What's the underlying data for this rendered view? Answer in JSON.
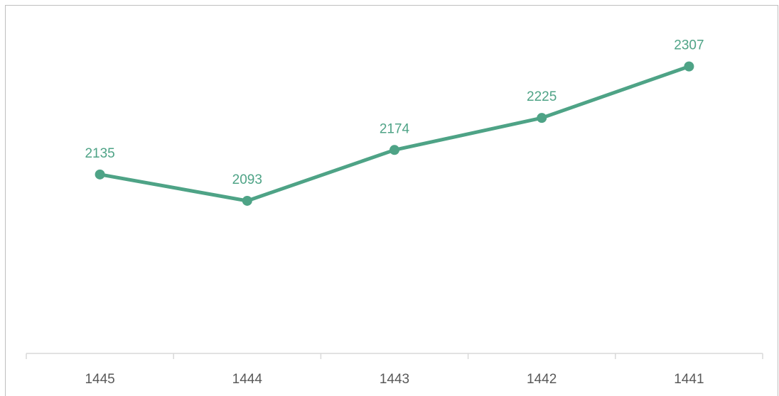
{
  "chart_data": {
    "type": "line",
    "title": "",
    "xlabel": "",
    "ylabel": "",
    "categories": [
      "1445",
      "1444",
      "1443",
      "1442",
      "1441"
    ],
    "series": [
      {
        "values": [
          2135,
          2093,
          2174,
          2225,
          2307
        ]
      }
    ],
    "data_labels": [
      "2135",
      "2093",
      "2174",
      "2225",
      "2307"
    ],
    "ylim": [
      1850,
      2345
    ],
    "grid": false,
    "legend": "none",
    "colors": {
      "line": "#4ea386",
      "axis": "#d9d9d9",
      "frame": "#bfbfbf",
      "tick_text": "#595959"
    }
  }
}
